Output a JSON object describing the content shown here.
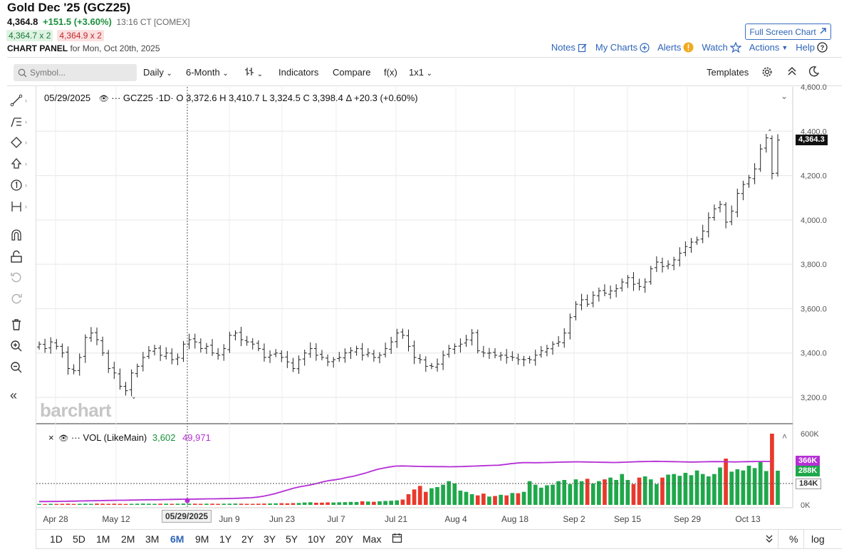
{
  "header": {
    "title": "Gold Dec '25 (GCZ25)",
    "last": "4,364.8",
    "change": "+151.5 (+3.60%)",
    "time": "13:16 CT [COMEX]",
    "bid": "4,364.7 x 2",
    "ask": "4,364.9 x 2",
    "panel_label": "CHART PANEL",
    "panel_date": "for Mon, Oct 20th, 2025",
    "fullscreen": "Full Screen Chart"
  },
  "links": {
    "notes": "Notes",
    "mycharts": "My Charts",
    "alerts": "Alerts",
    "watch": "Watch",
    "actions": "Actions",
    "help": "Help"
  },
  "toolbar": {
    "symbol_placeholder": "Symbol...",
    "interval": "Daily",
    "period": "6-Month",
    "indicators": "Indicators",
    "compare": "Compare",
    "fx": "f(x)",
    "layout": "1x1",
    "templates": "Templates"
  },
  "legend": {
    "date": "05/29/2025",
    "symbol": "GCZ25 ·1D·",
    "open": "O 3,372.6",
    "high": "H 3,410.7",
    "low": "L 3,324.5",
    "close": "C 3,398.4",
    "delta": "Δ +20.3 (+0.60%)"
  },
  "volume_legend": {
    "label": "VOL (LikeMain)",
    "vol": "3,602",
    "avg": "49,971"
  },
  "watermark": "barchart",
  "price_tag": "4,364.3",
  "vol_tags": [
    "366K",
    "288K",
    "184K"
  ],
  "cursor_date": "05/29/2025",
  "ranges": [
    "1D",
    "5D",
    "1M",
    "2M",
    "3M",
    "6M",
    "9M",
    "1Y",
    "2Y",
    "3Y",
    "5Y",
    "10Y",
    "20Y",
    "Max"
  ],
  "active_range": "6M",
  "scale": {
    "percent": "%",
    "log": "log"
  },
  "colors": {
    "up": "#1fa84a",
    "down": "#e8392c",
    "ma": "#b52fd6",
    "link": "#2e64b8"
  },
  "chart_data": {
    "type": "ohlc",
    "price_axis": {
      "ticks": [
        3200,
        3400,
        3600,
        3800,
        4000,
        4200,
        4400,
        4600
      ],
      "labels": [
        "3,200.0",
        "3,400.0",
        "3,600.0",
        "3,800.0",
        "4,000.0",
        "4,200.0",
        "4,400.0",
        "4,600.0"
      ]
    },
    "volume_axis": {
      "labels": [
        "600K",
        "0K"
      ]
    },
    "x_labels": [
      "Apr 28",
      "May 12",
      "Jun 9",
      "Jun 23",
      "Jul 7",
      "Jul 21",
      "Aug 4",
      "Aug 18",
      "Sep 2",
      "Sep 15",
      "Sep 29",
      "Oct 13"
    ],
    "closes": [
      3440,
      3420,
      3450,
      3430,
      3400,
      3330,
      3320,
      3380,
      3470,
      3490,
      3460,
      3400,
      3330,
      3310,
      3250,
      3230,
      3310,
      3340,
      3380,
      3410,
      3420,
      3390,
      3400,
      3370,
      3380,
      3440,
      3460,
      3450,
      3420,
      3430,
      3400,
      3390,
      3420,
      3480,
      3490,
      3460,
      3450,
      3440,
      3420,
      3380,
      3390,
      3400,
      3380,
      3360,
      3330,
      3370,
      3400,
      3420,
      3390,
      3380,
      3360,
      3370,
      3380,
      3400,
      3410,
      3420,
      3390,
      3400,
      3380,
      3390,
      3420,
      3450,
      3490,
      3480,
      3430,
      3380,
      3370,
      3340,
      3340,
      3350,
      3390,
      3420,
      3430,
      3440,
      3460,
      3490,
      3410,
      3400,
      3400,
      3390,
      3390,
      3380,
      3380,
      3370,
      3370,
      3370,
      3390,
      3410,
      3420,
      3440,
      3450,
      3490,
      3560,
      3620,
      3640,
      3620,
      3660,
      3680,
      3670,
      3680,
      3690,
      3720,
      3740,
      3710,
      3700,
      3720,
      3780,
      3810,
      3790,
      3800,
      3820,
      3850,
      3880,
      3900,
      3910,
      3950,
      4010,
      4050,
      4070,
      3990,
      4040,
      4120,
      4160,
      4190,
      4230,
      4320,
      4370,
      4210,
      4360
    ],
    "volumes": [
      8,
      7,
      9,
      8,
      9,
      10,
      8,
      9,
      10,
      9,
      11,
      10,
      9,
      10,
      9,
      8,
      9,
      10,
      11,
      10,
      9,
      10,
      10,
      9,
      10,
      11,
      10,
      10,
      9,
      10,
      10,
      9,
      10,
      10,
      11,
      10,
      9,
      9,
      10,
      11,
      12,
      13,
      14,
      13,
      15,
      16,
      20,
      22,
      18,
      19,
      21,
      20,
      22,
      23,
      25,
      24,
      30,
      28,
      26,
      30,
      33,
      35,
      38,
      45,
      90,
      130,
      160,
      110,
      140,
      150,
      170,
      200,
      180,
      120,
      110,
      90,
      80,
      95,
      70,
      75,
      85,
      80,
      100,
      98,
      110,
      200,
      170,
      145,
      165,
      170,
      200,
      210,
      175,
      215,
      200,
      220,
      180,
      200,
      215,
      230,
      210,
      260,
      210,
      175,
      230,
      240,
      215,
      175,
      230,
      255,
      260,
      245,
      270,
      250,
      290,
      260,
      240,
      260,
      315,
      390,
      280,
      300,
      290,
      330,
      310,
      360,
      285,
      600,
      288
    ],
    "vol_ma_k": [
      28,
      28,
      29,
      29,
      30,
      31,
      32,
      33,
      34,
      35,
      36,
      37,
      38,
      39,
      39,
      40,
      41,
      42,
      43,
      43,
      44,
      45,
      46,
      47,
      48,
      48,
      49,
      50,
      51,
      51,
      52,
      53,
      54,
      56,
      58,
      60,
      65,
      72,
      82,
      95,
      110,
      125,
      140,
      152,
      160,
      170,
      182,
      195,
      205,
      212,
      220,
      232,
      242,
      255,
      268,
      285,
      300,
      310,
      320,
      327,
      328,
      327,
      325,
      324,
      323,
      323,
      322,
      322,
      321,
      322,
      323,
      325,
      327,
      329,
      331,
      333,
      334,
      340,
      347,
      352,
      356,
      356,
      355,
      356,
      357,
      358,
      360,
      361,
      362,
      363,
      362,
      361,
      360,
      359,
      358,
      357,
      358,
      360,
      362,
      364,
      365,
      366,
      367,
      366,
      365,
      364,
      363,
      362,
      361,
      362,
      363,
      364,
      365,
      364,
      363,
      362,
      363,
      364,
      365,
      366,
      366,
      366
    ]
  }
}
